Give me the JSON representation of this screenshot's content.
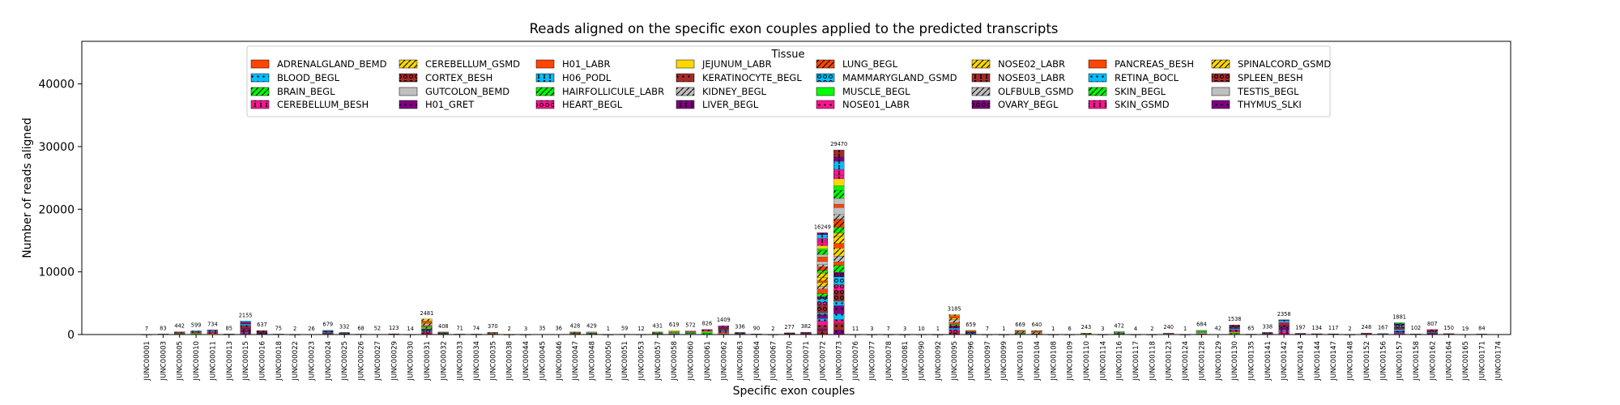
{
  "chart_data": {
    "type": "bar",
    "stacked": true,
    "title": "Reads aligned on the specific exon couples applied to the predicted transcripts",
    "xlabel": "Specific exon couples",
    "ylabel": "Number of reads aligned",
    "ylim": [
      0,
      46800
    ],
    "yticks": [
      0,
      10000,
      20000,
      30000,
      40000
    ],
    "legend_title": "Tissue",
    "legend_position": "top-center",
    "categories": [
      "JUNC00001",
      "JUNC00003",
      "JUNC00005",
      "JUNC00010",
      "JUNC00011",
      "JUNC00013",
      "JUNC00015",
      "JUNC00016",
      "JUNC00018",
      "JUNC00022",
      "JUNC00023",
      "JUNC00024",
      "JUNC00025",
      "JUNC00026",
      "JUNC00027",
      "JUNC00029",
      "JUNC00030",
      "JUNC00031",
      "JUNC00032",
      "JUNC00033",
      "JUNC00034",
      "JUNC00035",
      "JUNC00038",
      "JUNC00044",
      "JUNC00045",
      "JUNC00046",
      "JUNC00047",
      "JUNC00048",
      "JUNC00050",
      "JUNC00051",
      "JUNC00053",
      "JUNC00057",
      "JUNC00058",
      "JUNC00060",
      "JUNC00061",
      "JUNC00062",
      "JUNC00063",
      "JUNC00064",
      "JUNC00067",
      "JUNC00070",
      "JUNC00071",
      "JUNC00072",
      "JUNC00073",
      "JUNC00076",
      "JUNC00077",
      "JUNC00078",
      "JUNC00081",
      "JUNC00090",
      "JUNC00092",
      "JUNC00095",
      "JUNC00096",
      "JUNC00097",
      "JUNC00099",
      "JUNC00103",
      "JUNC00104",
      "JUNC00108",
      "JUNC00109",
      "JUNC00110",
      "JUNC00114",
      "JUNC00116",
      "JUNC00117",
      "JUNC00118",
      "JUNC00123",
      "JUNC00124",
      "JUNC00128",
      "JUNC00129",
      "JUNC00130",
      "JUNC00135",
      "JUNC00141",
      "JUNC00142",
      "JUNC00143",
      "JUNC00144",
      "JUNC00147",
      "JUNC00148",
      "JUNC00152",
      "JUNC00156",
      "JUNC00157",
      "JUNC00158",
      "JUNC00162",
      "JUNC00164",
      "JUNC00165",
      "JUNC00171",
      "JUNC00174"
    ],
    "totals": [
      7,
      83,
      442,
      599,
      734,
      85,
      2155,
      637,
      75,
      2,
      26,
      679,
      332,
      68,
      52,
      123,
      14,
      2481,
      408,
      71,
      74,
      370,
      2,
      3,
      35,
      36,
      428,
      429,
      1,
      59,
      12,
      431,
      619,
      572,
      826,
      1409,
      336,
      90,
      2,
      277,
      382,
      16249,
      29470,
      11,
      3,
      7,
      3,
      10,
      1,
      3185,
      659,
      7,
      1,
      669,
      640,
      1,
      6,
      243,
      3,
      472,
      4,
      2,
      240,
      1,
      684,
      42,
      1538,
      65,
      338,
      2358,
      197,
      134,
      117,
      2,
      248,
      167,
      1881,
      102,
      807,
      150,
      19,
      84
    ],
    "series": [
      {
        "name": "ADRENALGLAND_BEMD",
        "color": "#ff4500",
        "hatch": "none"
      },
      {
        "name": "BLOOD_BEGL",
        "color": "#00bfff",
        "hatch": "dot"
      },
      {
        "name": "BRAIN_BEGL",
        "color": "#00ff00",
        "hatch": "slash"
      },
      {
        "name": "CEREBELLUM_BESH",
        "color": "#ff1493",
        "hatch": "ring"
      },
      {
        "name": "CEREBELLUM_GSMD",
        "color": "#ffd700",
        "hatch": "slash"
      },
      {
        "name": "CORTEX_BESH",
        "color": "#a52a2a",
        "hatch": "circle"
      },
      {
        "name": "GUTCOLON_BEMD",
        "color": "#c0c0c0",
        "hatch": "none"
      },
      {
        "name": "H01_GRET",
        "color": "#800080",
        "hatch": "dot"
      },
      {
        "name": "H01_LABR",
        "color": "#ff4500",
        "hatch": "none"
      },
      {
        "name": "H06_PODL",
        "color": "#00bfff",
        "hatch": "ring"
      },
      {
        "name": "HAIRFOLLICULE_LABR",
        "color": "#00ff00",
        "hatch": "slash"
      },
      {
        "name": "HEART_BEGL",
        "color": "#ff1493",
        "hatch": "circle"
      },
      {
        "name": "JEJUNUM_LABR",
        "color": "#ffd700",
        "hatch": "none"
      },
      {
        "name": "KERATINOCYTE_BEGL",
        "color": "#a52a2a",
        "hatch": "dot"
      },
      {
        "name": "KIDNEY_BEGL",
        "color": "#c0c0c0",
        "hatch": "slash"
      },
      {
        "name": "LIVER_BEGL",
        "color": "#800080",
        "hatch": "ring"
      },
      {
        "name": "LUNG_BEGL",
        "color": "#ff4500",
        "hatch": "slash"
      },
      {
        "name": "MAMMARYGLAND_GSMD",
        "color": "#00bfff",
        "hatch": "circle"
      },
      {
        "name": "MUSCLE_BEGL",
        "color": "#00ff00",
        "hatch": "none"
      },
      {
        "name": "NOSE01_LABR",
        "color": "#ff1493",
        "hatch": "dot"
      },
      {
        "name": "NOSE02_LABR",
        "color": "#ffd700",
        "hatch": "slash"
      },
      {
        "name": "NOSE03_LABR",
        "color": "#a52a2a",
        "hatch": "ring"
      },
      {
        "name": "OLFBULB_GSMD",
        "color": "#c0c0c0",
        "hatch": "slash"
      },
      {
        "name": "OVARY_BEGL",
        "color": "#800080",
        "hatch": "circle"
      },
      {
        "name": "PANCREAS_BESH",
        "color": "#ff4500",
        "hatch": "none"
      },
      {
        "name": "RETINA_BOCL",
        "color": "#00bfff",
        "hatch": "dot"
      },
      {
        "name": "SKIN_BEGL",
        "color": "#00ff00",
        "hatch": "slash"
      },
      {
        "name": "SKIN_GSMD",
        "color": "#ff1493",
        "hatch": "ring"
      },
      {
        "name": "SPINALCORD_GSMD",
        "color": "#ffd700",
        "hatch": "slash"
      },
      {
        "name": "SPLEEN_BESH",
        "color": "#a52a2a",
        "hatch": "circle"
      },
      {
        "name": "TESTIS_BEGL",
        "color": "#c0c0c0",
        "hatch": "none"
      },
      {
        "name": "THYMUS_SLKI",
        "color": "#800080",
        "hatch": "dot"
      }
    ],
    "grid": false
  }
}
